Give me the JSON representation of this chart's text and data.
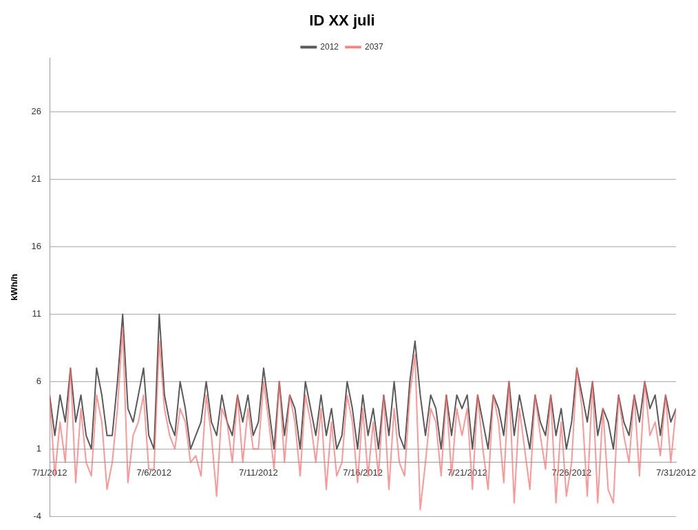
{
  "chart_data": {
    "type": "line",
    "title": "ID XX juli",
    "ylabel": "kWh/h",
    "x": [
      "2012-07-01T00:00",
      "2012-07-01T06:00",
      "2012-07-01T12:00",
      "2012-07-01T18:00",
      "2012-07-02T00:00",
      "2012-07-02T06:00",
      "2012-07-02T12:00",
      "2012-07-02T18:00",
      "2012-07-03T00:00",
      "2012-07-03T06:00",
      "2012-07-03T12:00",
      "2012-07-03T18:00",
      "2012-07-04T00:00",
      "2012-07-04T06:00",
      "2012-07-04T12:00",
      "2012-07-04T18:00",
      "2012-07-05T00:00",
      "2012-07-05T06:00",
      "2012-07-05T12:00",
      "2012-07-05T18:00",
      "2012-07-06T00:00",
      "2012-07-06T06:00",
      "2012-07-06T12:00",
      "2012-07-06T18:00",
      "2012-07-07T00:00",
      "2012-07-07T06:00",
      "2012-07-07T12:00",
      "2012-07-07T18:00",
      "2012-07-08T00:00",
      "2012-07-08T06:00",
      "2012-07-08T12:00",
      "2012-07-08T18:00",
      "2012-07-09T00:00",
      "2012-07-09T06:00",
      "2012-07-09T12:00",
      "2012-07-09T18:00",
      "2012-07-10T00:00",
      "2012-07-10T06:00",
      "2012-07-10T12:00",
      "2012-07-10T18:00",
      "2012-07-11T00:00",
      "2012-07-11T06:00",
      "2012-07-11T12:00",
      "2012-07-11T18:00",
      "2012-07-12T00:00",
      "2012-07-12T06:00",
      "2012-07-12T12:00",
      "2012-07-12T18:00",
      "2012-07-13T00:00",
      "2012-07-13T06:00",
      "2012-07-13T12:00",
      "2012-07-13T18:00",
      "2012-07-14T00:00",
      "2012-07-14T06:00",
      "2012-07-14T12:00",
      "2012-07-14T18:00",
      "2012-07-15T00:00",
      "2012-07-15T06:00",
      "2012-07-15T12:00",
      "2012-07-15T18:00",
      "2012-07-16T00:00",
      "2012-07-16T06:00",
      "2012-07-16T12:00",
      "2012-07-16T18:00",
      "2012-07-17T00:00",
      "2012-07-17T06:00",
      "2012-07-17T12:00",
      "2012-07-17T18:00",
      "2012-07-18T00:00",
      "2012-07-18T06:00",
      "2012-07-18T12:00",
      "2012-07-18T18:00",
      "2012-07-19T00:00",
      "2012-07-19T06:00",
      "2012-07-19T12:00",
      "2012-07-19T18:00",
      "2012-07-20T00:00",
      "2012-07-20T06:00",
      "2012-07-20T12:00",
      "2012-07-20T18:00",
      "2012-07-21T00:00",
      "2012-07-21T06:00",
      "2012-07-21T12:00",
      "2012-07-21T18:00",
      "2012-07-22T00:00",
      "2012-07-22T06:00",
      "2012-07-22T12:00",
      "2012-07-22T18:00",
      "2012-07-23T00:00",
      "2012-07-23T06:00",
      "2012-07-23T12:00",
      "2012-07-23T18:00",
      "2012-07-24T00:00",
      "2012-07-24T06:00",
      "2012-07-24T12:00",
      "2012-07-24T18:00",
      "2012-07-25T00:00",
      "2012-07-25T06:00",
      "2012-07-25T12:00",
      "2012-07-25T18:00",
      "2012-07-26T00:00",
      "2012-07-26T06:00",
      "2012-07-26T12:00",
      "2012-07-26T18:00",
      "2012-07-27T00:00",
      "2012-07-27T06:00",
      "2012-07-27T12:00",
      "2012-07-27T18:00",
      "2012-07-28T00:00",
      "2012-07-28T06:00",
      "2012-07-28T12:00",
      "2012-07-28T18:00",
      "2012-07-29T00:00",
      "2012-07-29T06:00",
      "2012-07-29T12:00",
      "2012-07-29T18:00",
      "2012-07-30T00:00",
      "2012-07-30T06:00",
      "2012-07-30T12:00",
      "2012-07-30T18:00",
      "2012-07-31T00:00"
    ],
    "series": [
      {
        "name": "2012",
        "color": "#595959",
        "values": [
          5,
          2,
          5,
          3,
          7,
          3,
          5,
          2,
          1,
          7,
          5,
          2,
          2,
          6,
          11,
          4,
          3,
          5,
          7,
          2,
          1,
          11,
          5,
          3,
          2,
          6,
          4,
          1,
          2,
          3,
          6,
          3,
          2,
          5,
          3,
          2,
          5,
          3,
          5,
          2,
          3,
          7,
          4,
          1,
          6,
          2,
          5,
          4,
          1,
          6,
          4,
          2,
          5,
          2,
          4,
          1,
          2,
          6,
          4,
          1,
          5,
          2,
          4,
          1,
          5,
          2,
          6,
          2,
          1,
          6,
          9,
          5,
          2,
          5,
          4,
          1,
          5,
          2,
          5,
          4,
          5,
          1,
          5,
          3,
          1,
          5,
          4,
          2,
          6,
          2,
          5,
          3,
          1,
          5,
          3,
          2,
          5,
          2,
          4,
          1,
          3,
          7,
          5,
          3,
          6,
          2,
          4,
          3,
          1,
          5,
          3,
          2,
          5,
          3,
          6,
          4,
          5,
          2,
          5,
          3,
          4
        ]
      },
      {
        "name": "2037",
        "color": "#ff6b6b",
        "values": [
          5,
          -1,
          3,
          0,
          7,
          -1.5,
          4,
          0,
          -1,
          5,
          3,
          -2,
          0,
          4,
          10,
          -1.5,
          2,
          3,
          5,
          -0.5,
          -0.5,
          9,
          4,
          2,
          1,
          4,
          3,
          0,
          0.5,
          -1,
          5,
          2,
          -2.5,
          4,
          3,
          0,
          5,
          0,
          4,
          1,
          1,
          6,
          3,
          -0.5,
          6,
          0,
          5,
          3,
          -1,
          5,
          3,
          0,
          4,
          -2,
          3,
          -1,
          0,
          5,
          3,
          -1.5,
          4,
          -1,
          3,
          -1,
          5,
          -2,
          4,
          0,
          -1,
          5,
          8,
          -3.5,
          0,
          4,
          3,
          -1,
          5,
          -1,
          4,
          2,
          4,
          -2,
          5,
          1,
          -2,
          5,
          3,
          -1.5,
          6,
          -3,
          4,
          1,
          -2,
          5,
          2,
          -0.5,
          5,
          -3,
          3,
          -2.5,
          0,
          7,
          4,
          -2.5,
          6,
          -3,
          4,
          -2,
          -3,
          5,
          2,
          0,
          5,
          -1,
          6,
          2,
          3,
          0.5,
          5,
          0,
          4
        ]
      }
    ],
    "xlim": [
      "2012-07-01",
      "2012-07-31"
    ],
    "xticks": [
      {
        "value": "2012-07-01",
        "label": "7/1/2012"
      },
      {
        "value": "2012-07-06",
        "label": "7/6/2012"
      },
      {
        "value": "2012-07-11",
        "label": "7/11/2012"
      },
      {
        "value": "2012-07-16",
        "label": "7/16/2012"
      },
      {
        "value": "2012-07-21",
        "label": "7/21/2012"
      },
      {
        "value": "2012-07-26",
        "label": "7/26/2012"
      },
      {
        "value": "2012-07-31",
        "label": "7/31/2012"
      }
    ],
    "ylim": [
      -4,
      30
    ],
    "yticks": [
      -4,
      1,
      6,
      11,
      16,
      21,
      26
    ],
    "grid": "y",
    "legend": "top",
    "marker": "none",
    "line_style": "solid"
  }
}
